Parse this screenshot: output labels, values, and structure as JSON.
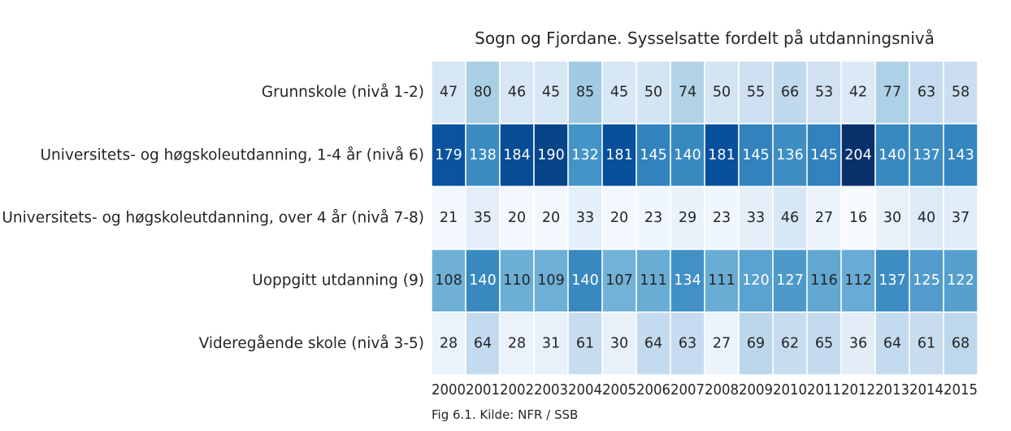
{
  "title": "Sogn og Fjordane. Sysselsatte fordelt på utdanningsnivå",
  "caption": "Fig 6.1. Kilde: NFR / SSB",
  "chart_data": {
    "type": "heatmap",
    "title": "Sogn og Fjordane. Sysselsatte fordelt på utdanningsnivå",
    "colormap": "Blues",
    "value_range": [
      16,
      204
    ],
    "rows": [
      "Grunnskole (nivå 1-2)",
      "Universitets- og høgskoleutdanning, 1-4 år (nivå 6)",
      "Universitets- og høgskoleutdanning, over 4 år (nivå 7-8)",
      "Uoppgitt utdanning (9)",
      "Videregående skole (nivå 3-5)"
    ],
    "columns": [
      "2000",
      "2001",
      "2002",
      "2003",
      "2004",
      "2005",
      "2006",
      "2007",
      "2008",
      "2009",
      "2010",
      "2011",
      "2012",
      "2013",
      "2014",
      "2015"
    ],
    "values": [
      [
        47,
        80,
        46,
        45,
        85,
        45,
        50,
        74,
        50,
        55,
        66,
        53,
        42,
        77,
        63,
        58
      ],
      [
        179,
        138,
        184,
        190,
        132,
        181,
        145,
        140,
        181,
        145,
        136,
        145,
        204,
        140,
        137,
        143
      ],
      [
        21,
        35,
        20,
        20,
        33,
        20,
        23,
        29,
        23,
        33,
        46,
        27,
        16,
        30,
        40,
        37
      ],
      [
        108,
        140,
        110,
        109,
        140,
        107,
        111,
        134,
        111,
        120,
        127,
        116,
        112,
        137,
        125,
        122
      ],
      [
        28,
        64,
        28,
        31,
        61,
        30,
        64,
        63,
        27,
        69,
        62,
        65,
        36,
        64,
        61,
        68
      ]
    ]
  }
}
